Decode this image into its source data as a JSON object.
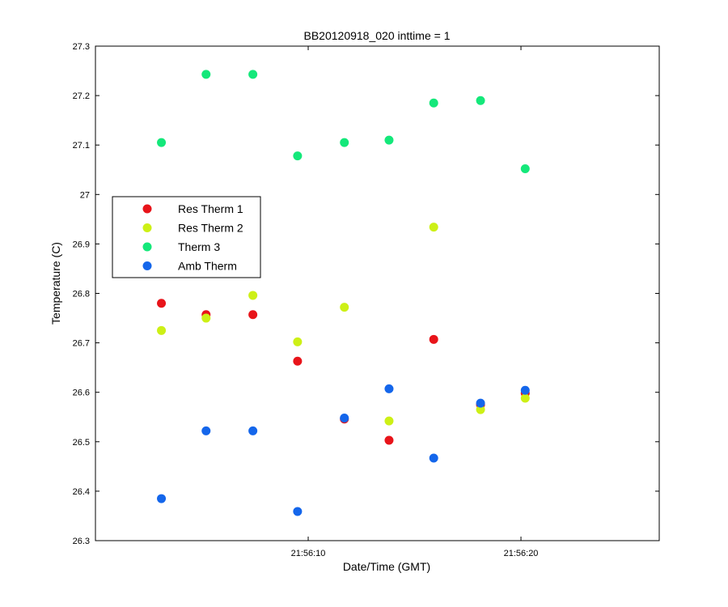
{
  "chart_data": {
    "type": "scatter",
    "title": "BB20120918_020 inttime = 1",
    "xlabel": "Date/Time (GMT)",
    "ylabel": "Temperature (C)",
    "x_time_start": "21:56:00",
    "xlim_seconds": [
      0,
      26.5
    ],
    "x_ticks": [
      {
        "value": 10,
        "label": "21:56:10"
      },
      {
        "value": 20,
        "label": "21:56:20"
      }
    ],
    "ylim": [
      26.3,
      27.3
    ],
    "y_ticks": [
      "26.3",
      "26.4",
      "26.5",
      "26.6",
      "26.7",
      "26.8",
      "26.9",
      "27",
      "27.1",
      "27.2",
      "27.3"
    ],
    "grid": false,
    "legend_position": "left",
    "x": [
      3.1,
      5.2,
      7.4,
      9.5,
      11.7,
      13.8,
      15.9,
      18.1,
      20.2
    ],
    "series": [
      {
        "name": "Res Therm 1",
        "color": "#e8141a",
        "values": [
          26.78,
          26.757,
          26.757,
          26.663,
          26.546,
          26.503,
          26.707,
          26.575,
          26.598
        ]
      },
      {
        "name": "Res Therm 2",
        "color": "#cdf016",
        "values": [
          26.725,
          26.75,
          26.796,
          26.702,
          26.772,
          26.542,
          26.934,
          26.565,
          26.588
        ]
      },
      {
        "name": "Therm 3",
        "color": "#14e87a",
        "values": [
          27.105,
          27.243,
          27.243,
          27.078,
          27.105,
          27.11,
          27.185,
          27.19,
          27.052
        ]
      },
      {
        "name": "Amb Therm",
        "color": "#1466eb",
        "values": [
          26.385,
          26.522,
          26.522,
          26.359,
          26.548,
          26.607,
          26.467,
          26.578,
          26.604
        ]
      }
    ]
  }
}
